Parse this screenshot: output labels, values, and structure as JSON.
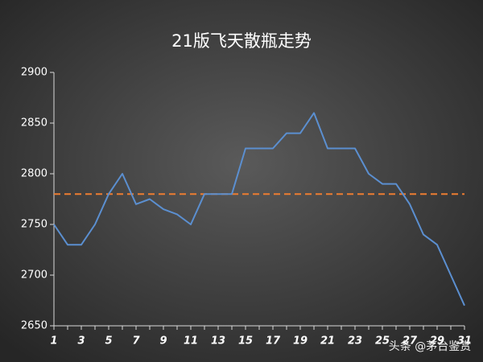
{
  "chart_data": {
    "type": "line",
    "title": "21版飞天散瓶走势",
    "categories": [
      "1",
      null,
      "3",
      null,
      "5",
      null,
      "7",
      null,
      "9",
      null,
      "11",
      null,
      "13",
      null,
      "15",
      null,
      "17",
      null,
      "19",
      null,
      "21",
      null,
      "23",
      null,
      "25",
      null,
      "27",
      null,
      "29",
      null,
      "31"
    ],
    "series": [
      {
        "color": "#5b8fd0",
        "values": [
          2750,
          2730,
          2730,
          2750,
          2780,
          2800,
          2770,
          2775,
          2765,
          2760,
          2750,
          2780,
          2780,
          2780,
          2825,
          2825,
          2825,
          2840,
          2840,
          2860,
          2825,
          2825,
          2825,
          2800,
          2790,
          2790,
          2770,
          2740,
          2730,
          2700,
          2670
        ]
      }
    ],
    "reference_line": {
      "value": 2780,
      "color": "#ed7d31",
      "dashed": true
    },
    "ylim": [
      2650,
      2900
    ],
    "yticks": [
      2650,
      2700,
      2750,
      2800,
      2850,
      2900
    ],
    "grid": false,
    "watermark": "头条 @茅台鉴赏"
  }
}
